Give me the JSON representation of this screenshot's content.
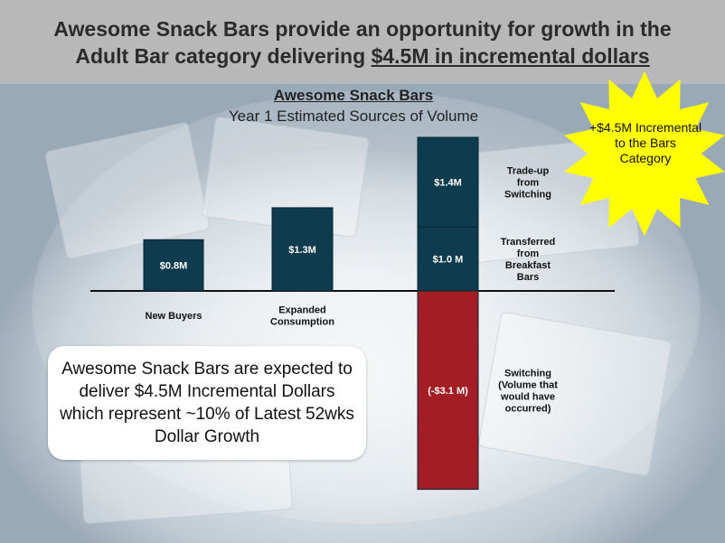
{
  "header": {
    "line1": "Awesome Snack Bars provide an opportunity for growth in the",
    "line2_prefix": "Adult Bar category delivering ",
    "line2_highlight": "$4.5M in incremental dollars"
  },
  "callout_star": {
    "text": "+$4.5M Incremental to the Bars Category",
    "color": "#ffff00"
  },
  "note_box": {
    "text": "Awesome Snack Bars are expected to deliver $4.5M Incremental Dollars which represent ~10% of Latest 52wks Dollar Growth"
  },
  "colors": {
    "positive_bar": "#0f3b4e",
    "negative_bar": "#a31d24",
    "bar_label": "#ffffff"
  },
  "chart_data": {
    "type": "bar",
    "title": "Awesome Snack Bars",
    "subtitle": "Year 1 Estimated Sources of Volume",
    "unit": "$M",
    "bars": [
      {
        "segments": [
          {
            "value": 0.8,
            "label": "$0.8M"
          }
        ],
        "category_label": "New Buyers"
      },
      {
        "segments": [
          {
            "value": 1.3,
            "label": "$1.3M"
          }
        ],
        "category_label": "Expanded Consumption"
      },
      {
        "segments": [
          {
            "value": 1.0,
            "label": "$1.0 M",
            "side_label": "Transferred from Breakfast Bars"
          },
          {
            "value": 1.4,
            "label": "$1.4M",
            "side_label": "Trade-up from Switching"
          },
          {
            "value": -3.1,
            "label": "(-$3.1 M)",
            "side_label": "Switching (Volume that would have occurred)",
            "negative": true
          }
        ]
      }
    ]
  }
}
